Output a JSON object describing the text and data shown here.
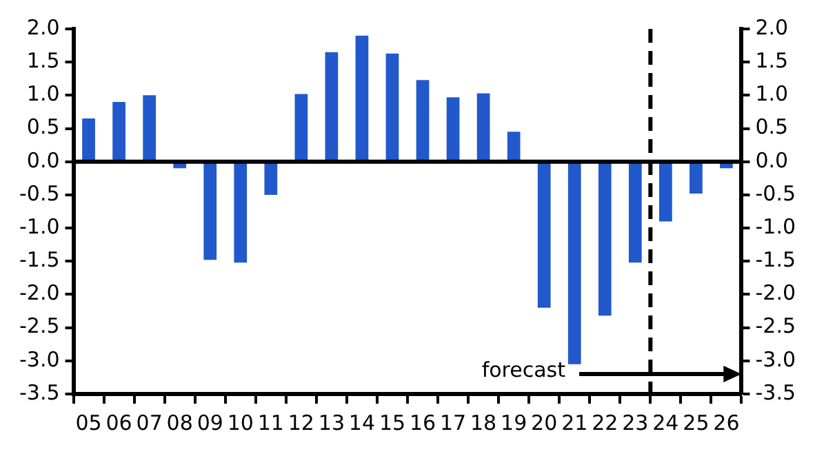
{
  "chart_data": {
    "type": "bar",
    "categories": [
      "05",
      "06",
      "07",
      "08",
      "09",
      "10",
      "11",
      "12",
      "13",
      "14",
      "15",
      "16",
      "17",
      "18",
      "19",
      "20",
      "21",
      "22",
      "23",
      "24",
      "25",
      "26"
    ],
    "series": [
      {
        "color": "#2158cc",
        "values": [
          0.65,
          0.9,
          1.0,
          -0.1,
          -1.48,
          -1.52,
          -0.5,
          1.02,
          1.65,
          1.9,
          1.63,
          1.23,
          0.97,
          1.03,
          0.45,
          -2.2,
          -3.05,
          -2.32,
          -1.52,
          -0.9,
          -0.48,
          -0.1
        ]
      }
    ],
    "ylim": [
      -3.5,
      2.0
    ],
    "yticks": [
      {
        "value": 2,
        "label": "2.0"
      },
      {
        "value": 1.5,
        "label": "1.5"
      },
      {
        "value": 1,
        "label": "1.0"
      },
      {
        "value": 0.5,
        "label": "0.5"
      },
      {
        "value": 0,
        "label": "0.0"
      },
      {
        "value": -0.5,
        "label": "-0.5"
      },
      {
        "value": -1,
        "label": "-1.0"
      },
      {
        "value": -1.5,
        "label": "-1.5"
      },
      {
        "value": -2,
        "label": "-2.0"
      },
      {
        "value": -2.5,
        "label": "-2.5"
      },
      {
        "value": -3,
        "label": "-3.0"
      },
      {
        "value": -3.5,
        "label": "-3.5"
      }
    ],
    "y2lim": [
      -3.5,
      2.0
    ],
    "y2ticks": [
      {
        "value": 2,
        "label": "2.0"
      },
      {
        "value": 1.5,
        "label": "1.5"
      },
      {
        "value": 1,
        "label": "1.0"
      },
      {
        "value": 0.5,
        "label": "0.5"
      },
      {
        "value": 0,
        "label": "0.0"
      },
      {
        "value": -0.5,
        "label": "-0.5"
      },
      {
        "value": -1,
        "label": "-1.0"
      },
      {
        "value": -1.5,
        "label": "-1.5"
      },
      {
        "value": -2,
        "label": "-2.0"
      },
      {
        "value": -2.5,
        "label": "-2.5"
      },
      {
        "value": -3,
        "label": "-3.0"
      },
      {
        "value": -3.5,
        "label": "-3.5"
      }
    ],
    "ref_lines": [
      {
        "axis": "x",
        "value": "24",
        "color": "#000000",
        "line_style": "dashed"
      }
    ],
    "annotations": [
      "forecast"
    ],
    "grid": false,
    "legend": false
  }
}
